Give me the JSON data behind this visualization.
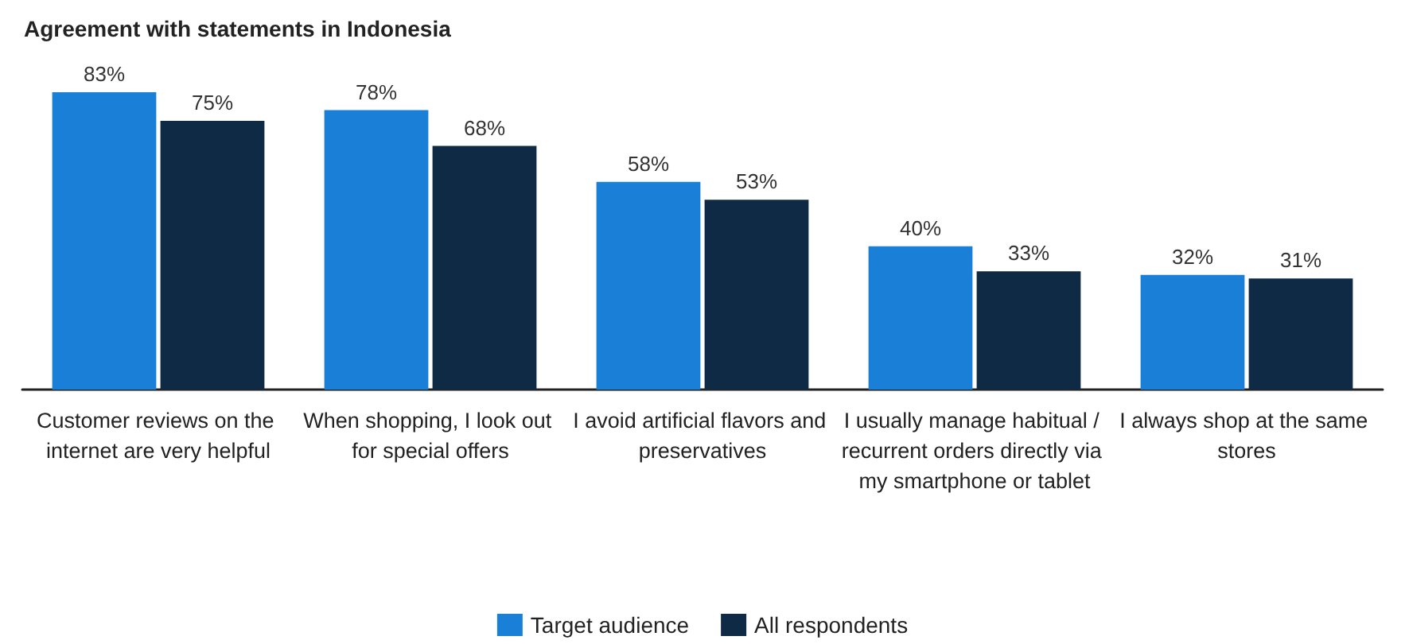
{
  "chart_data": {
    "type": "bar",
    "title": "Agreement with statements in Indonesia",
    "categories": [
      "Customer reviews on the internet are very helpful",
      "When shopping, I look out for special offers",
      "I avoid artificial flavors and preservatives",
      "I usually manage habitual / recurrent orders directly via my smartphone or tablet",
      "I always shop at the same stores"
    ],
    "series": [
      {
        "name": "Target audience",
        "color": "#1a7fd6",
        "values": [
          83,
          78,
          58,
          40,
          32
        ],
        "value_labels": [
          "83%",
          "78%",
          "58%",
          "40%",
          "32%"
        ]
      },
      {
        "name": "All respondents",
        "color": "#0f2a44",
        "values": [
          75,
          68,
          53,
          33,
          31
        ],
        "value_labels": [
          "75%",
          "68%",
          "53%",
          "33%",
          "31%"
        ]
      }
    ],
    "tick_labels": "x",
    "grid": false,
    "legend": "bottom"
  }
}
